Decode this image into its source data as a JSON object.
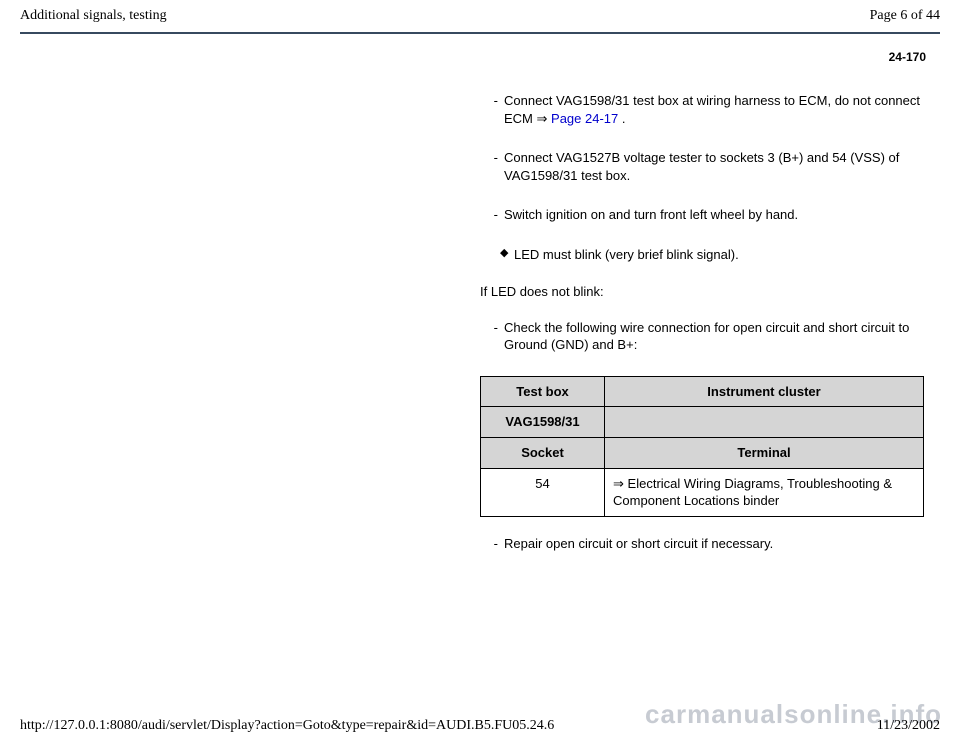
{
  "header": {
    "title": "Additional signals, testing",
    "page_indicator": "Page 6 of 44"
  },
  "page_code": "24-170",
  "steps": {
    "s1_pre": "Connect VAG1598/31 test box at wiring harness to ECM, do not connect ECM ",
    "s1_link": "Page 24-17",
    "s1_post": " .",
    "s2": "Connect VAG1527B voltage tester to sockets 3 (B+) and 54 (VSS) of VAG1598/31 test box.",
    "s3": "Switch ignition on and turn front left wheel by hand.",
    "bullet": "LED must blink (very brief blink signal).",
    "cond": "If LED does not blink:",
    "s4": "Check the following wire connection for open circuit and short circuit to Ground (GND) and B+:",
    "s5": "Repair open circuit or short circuit if necessary."
  },
  "table": {
    "h1a": "Test box",
    "h1b": "Instrument cluster",
    "h2a": "VAG1598/31",
    "h3a": "Socket",
    "h3b": "Terminal",
    "r1a": "54",
    "r1b_arrow": "⇒",
    "r1b_text": " Electrical Wiring Diagrams, Troubleshooting & Component Locations binder"
  },
  "footer": {
    "url": "http://127.0.0.1:8080/audi/servlet/Display?action=Goto&type=repair&id=AUDI.B5.FU05.24.6",
    "date": "11/23/2002"
  },
  "watermark": "carmanualsonline.info",
  "glyphs": {
    "dash": "- ",
    "arrow_right": "⇒",
    "diamond": "◆"
  }
}
